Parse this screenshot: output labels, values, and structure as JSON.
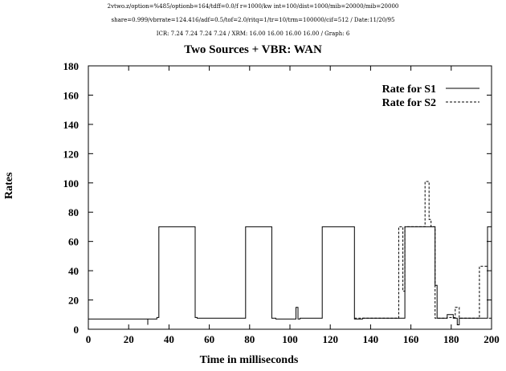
{
  "header": {
    "line1": "2vtwo.z/option=%485/optionb=164/tdff=0.0/f  r=1000/kw  int=100/dist=1000/mib=20000/mib=20000",
    "line2": "share=0.999/vbrrate=124.416/adf=0.5/tof=2.0/ritq=1/tr=10/trm=100000/cif=512 / Date:11/20/95",
    "line3": "ICR: 7.24 7.24 7.24 7.24 / XRM: 16.00 16.00 16.00 16.00 / Graph: 6"
  },
  "chart_data": {
    "type": "line",
    "title": "Two Sources + VBR: WAN",
    "xlabel": "Time in milliseconds",
    "ylabel": "Rates",
    "xlim": [
      0,
      200
    ],
    "ylim": [
      0,
      180
    ],
    "xticks": [
      0,
      20,
      40,
      60,
      80,
      100,
      120,
      140,
      160,
      180,
      200
    ],
    "yticks": [
      0,
      20,
      40,
      60,
      80,
      100,
      120,
      140,
      160,
      180
    ],
    "grid": false,
    "legend_position": "top-right",
    "series": [
      {
        "name": "Rate for S1",
        "style": "solid",
        "color": "#000000",
        "x": [
          0,
          29.5,
          29.5,
          29.5,
          30,
          34,
          34,
          35,
          35,
          53,
          53,
          54,
          54,
          78,
          78,
          91,
          91,
          93,
          93,
          103,
          103,
          104,
          104,
          105,
          105,
          116,
          116,
          132,
          132,
          136,
          136,
          140,
          140,
          157,
          157,
          158,
          158,
          172,
          172,
          173,
          173,
          176,
          176,
          178,
          178,
          181,
          181,
          183,
          183,
          184,
          184,
          186,
          186,
          196,
          196,
          198,
          198,
          200
        ],
        "y": [
          7,
          7,
          3,
          7,
          7,
          7,
          8,
          8,
          70,
          70,
          8,
          8,
          7.5,
          7.5,
          70,
          70,
          7.5,
          7.5,
          7,
          7,
          15,
          15,
          7,
          7,
          7.5,
          7.5,
          70,
          70,
          7,
          7,
          7.5,
          7.5,
          7.5,
          7.5,
          70,
          70,
          70,
          70,
          30,
          30,
          7.5,
          7.5,
          7.5,
          7.5,
          10,
          10,
          7.5,
          7.5,
          3,
          3,
          7.5,
          7.5,
          7.5,
          7.5,
          7.5,
          7.5,
          70,
          70
        ]
      },
      {
        "name": "Rate for S2",
        "style": "dashed",
        "color": "#000000",
        "x": [
          132,
          154,
          154,
          156,
          156,
          157,
          157,
          158,
          158,
          167,
          167,
          169,
          169,
          170,
          170,
          172,
          172,
          178,
          178,
          182,
          182,
          184,
          184,
          185,
          185,
          194,
          194,
          198,
          198,
          200
        ],
        "y": [
          7.5,
          7.5,
          70,
          70,
          26,
          26,
          70,
          70,
          70,
          70,
          101,
          101,
          75,
          75,
          70,
          70,
          7.5,
          7.5,
          8,
          8,
          15,
          15,
          7.5,
          7.5,
          7.5,
          7.5,
          43,
          43,
          7.5,
          7.5
        ]
      }
    ]
  }
}
